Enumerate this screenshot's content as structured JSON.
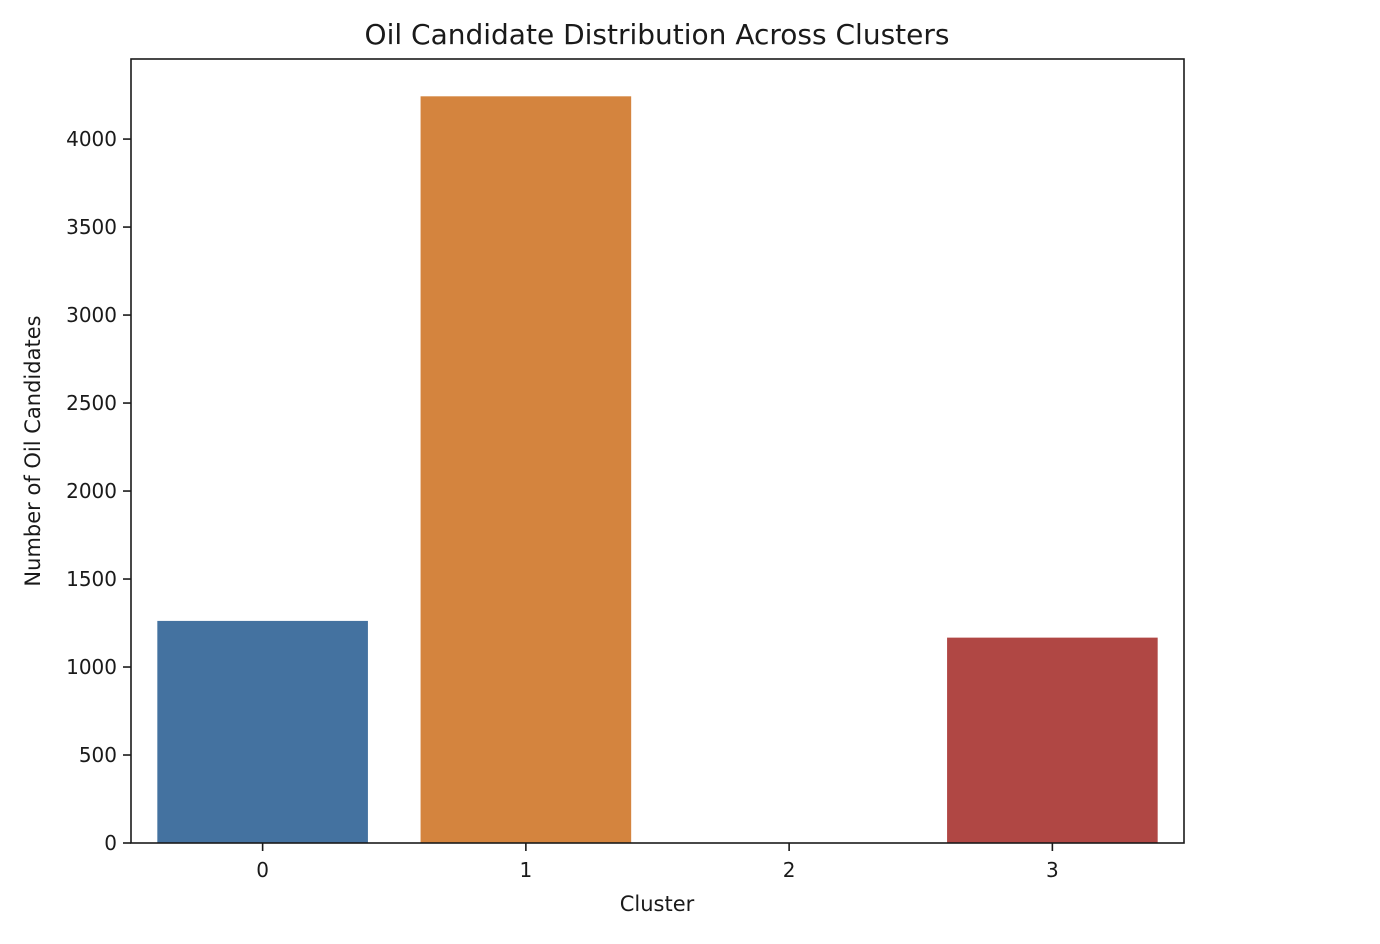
{
  "chart_data": {
    "type": "bar",
    "title": "Oil Candidate Distribution Across Clusters",
    "xlabel": "Cluster",
    "ylabel": "Number of Oil Candidates",
    "categories": [
      "0",
      "1",
      "2",
      "3"
    ],
    "values": [
      1262,
      4243,
      0,
      1167
    ],
    "colors": [
      "#4472a0",
      "#d4843e",
      "#3c9a4e",
      "#b04744"
    ],
    "ylim": [
      0,
      4455
    ],
    "yticks": [
      0,
      500,
      1000,
      1500,
      2000,
      2500,
      3000,
      3500,
      4000
    ],
    "grid": false,
    "legend": "none"
  }
}
